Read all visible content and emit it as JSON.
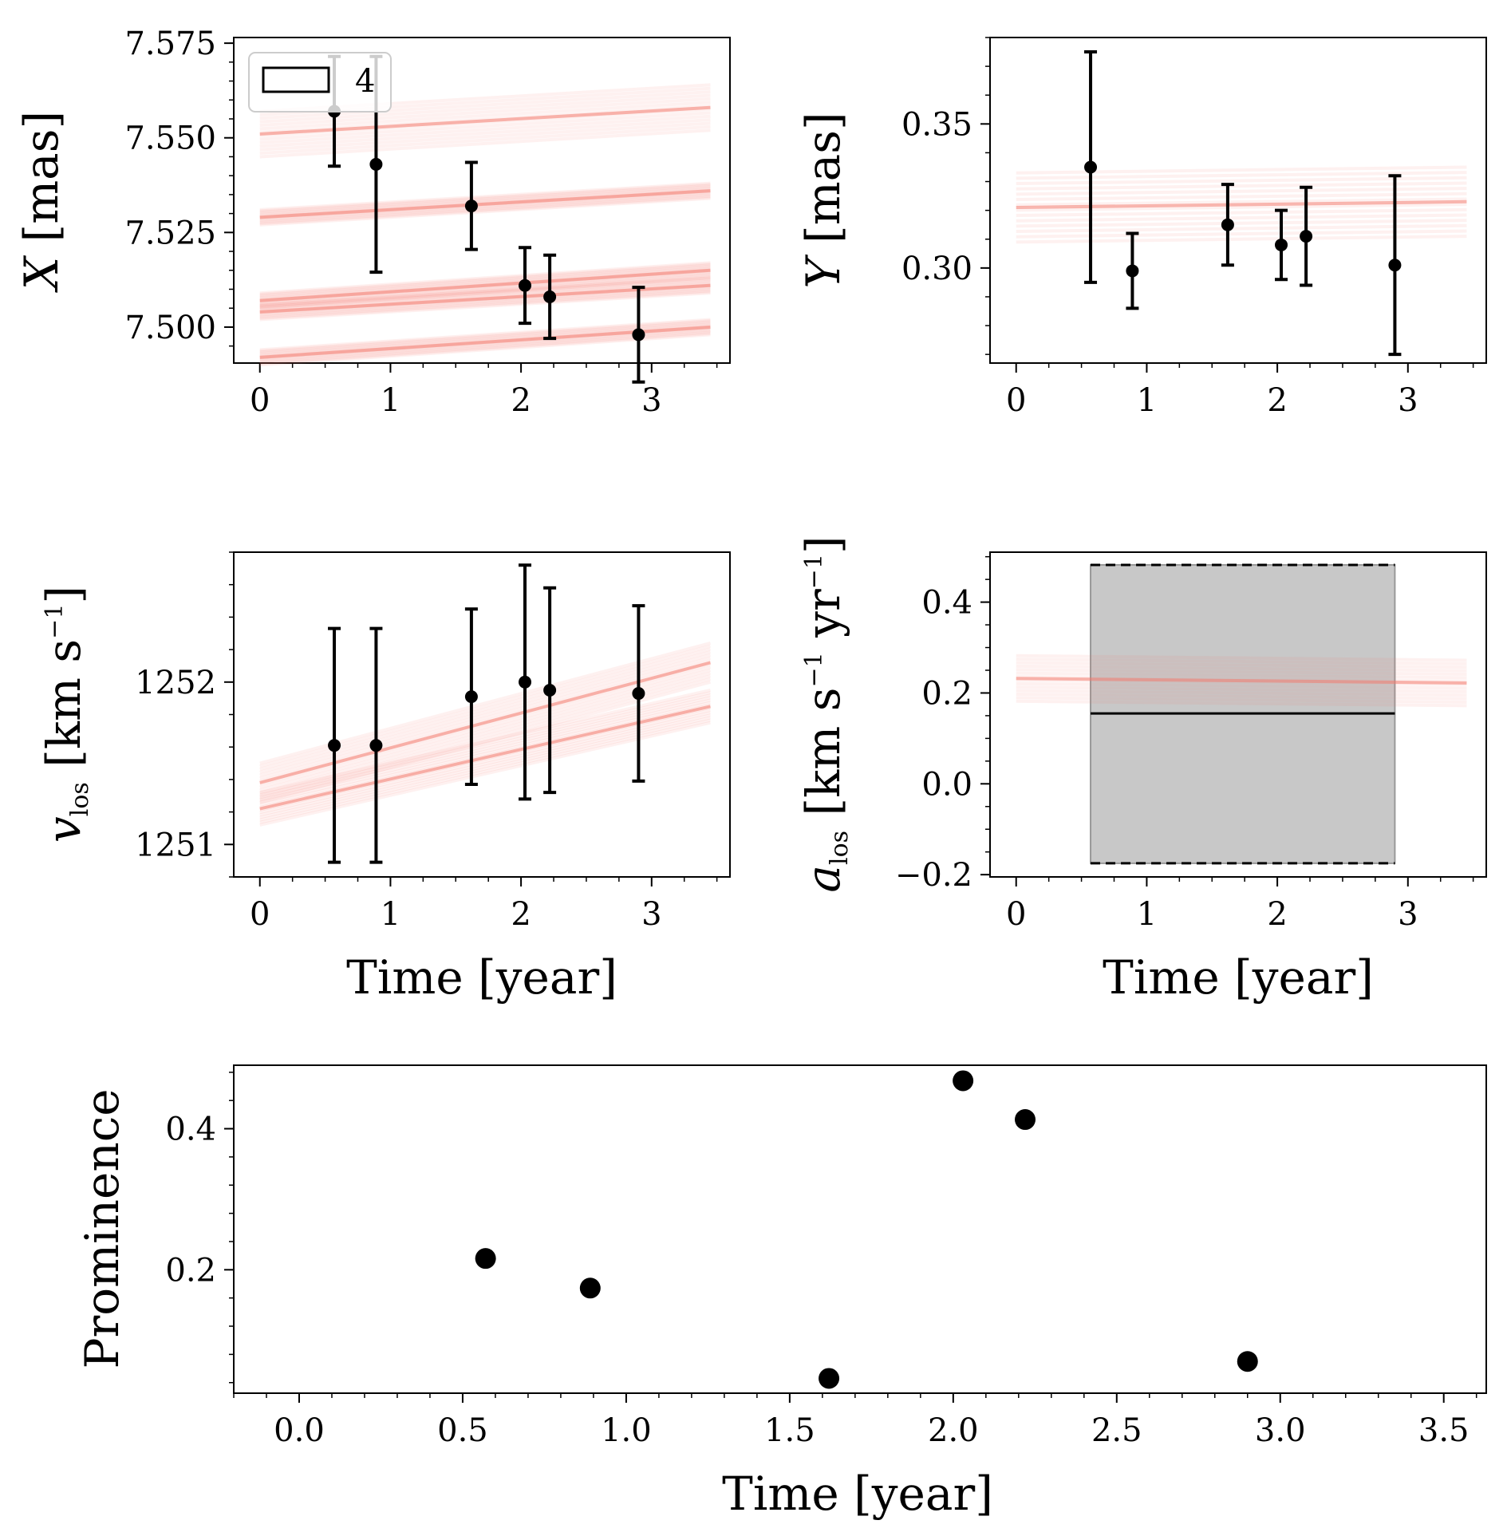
{
  "chart_data": [
    {
      "id": "x",
      "type": "line",
      "ylabel": "X [mas]",
      "ylabel_parts": [
        "X",
        " [mas]"
      ],
      "xlim": [
        -0.2,
        3.6
      ],
      "ylim": [
        7.4905,
        7.5765
      ],
      "xticks": [
        0,
        1,
        2,
        3
      ],
      "xtick_labels": [
        "0",
        "1",
        "2",
        "3"
      ],
      "yticks": [
        7.5,
        7.525,
        7.55,
        7.575
      ],
      "ytick_labels": [
        "7.500",
        "7.525",
        "7.550",
        "7.575"
      ],
      "legend": {
        "label": "4",
        "location": "upper left"
      },
      "points": {
        "x": [
          0.57,
          0.89,
          1.62,
          2.03,
          2.22,
          2.9
        ],
        "y": [
          7.557,
          7.543,
          7.532,
          7.511,
          7.508,
          7.498
        ],
        "yerr": [
          0.0145,
          0.0285,
          0.0115,
          0.01,
          0.011,
          0.0125
        ]
      },
      "model_bands": [
        {
          "x": [
            0,
            3.45
          ],
          "y": [
            7.551,
            7.558
          ],
          "width": 0.006
        },
        {
          "x": [
            0,
            3.45
          ],
          "y": [
            7.529,
            7.536
          ],
          "width": 0.002
        },
        {
          "x": [
            0,
            3.45
          ],
          "y": [
            7.507,
            7.515
          ],
          "width": 0.002
        },
        {
          "x": [
            0,
            3.45
          ],
          "y": [
            7.504,
            7.511
          ],
          "width": 0.002
        },
        {
          "x": [
            0,
            3.45
          ],
          "y": [
            7.492,
            7.5
          ],
          "width": 0.002
        }
      ]
    },
    {
      "id": "y",
      "type": "line",
      "ylabel": "Y [mas]",
      "ylabel_parts": [
        "Y",
        " [mas]"
      ],
      "xlim": [
        -0.2,
        3.6
      ],
      "ylim": [
        0.267,
        0.38
      ],
      "xticks": [
        0,
        1,
        2,
        3
      ],
      "xtick_labels": [
        "0",
        "1",
        "2",
        "3"
      ],
      "yticks": [
        0.3,
        0.35
      ],
      "ytick_labels": [
        "0.30",
        "0.35"
      ],
      "points": {
        "x": [
          0.57,
          0.89,
          1.62,
          2.03,
          2.22,
          2.9
        ],
        "y": [
          0.335,
          0.299,
          0.315,
          0.308,
          0.311,
          0.301
        ],
        "yerr": [
          0.04,
          0.013,
          0.014,
          0.012,
          0.017,
          0.031
        ]
      },
      "model_bands": [
        {
          "x": [
            0,
            3.45
          ],
          "y": [
            0.321,
            0.323
          ],
          "width": 0.012
        }
      ]
    },
    {
      "id": "vlos",
      "type": "line",
      "ylabel": "v_los [km s^-1]",
      "xlim": [
        -0.2,
        3.6
      ],
      "ylim": [
        1250.8,
        1252.8
      ],
      "xticks": [
        0,
        1,
        2,
        3
      ],
      "xtick_labels": [
        "0",
        "1",
        "2",
        "3"
      ],
      "yticks": [
        1251,
        1252
      ],
      "ytick_labels": [
        "1251",
        "1252"
      ],
      "xlabel": "Time [year]",
      "points": {
        "x": [
          0.57,
          0.89,
          1.62,
          2.03,
          2.22,
          2.9
        ],
        "y": [
          1251.61,
          1251.61,
          1251.91,
          1252.0,
          1251.95,
          1251.93
        ],
        "yerr": [
          0.72,
          0.72,
          0.54,
          0.72,
          0.63,
          0.54
        ]
      },
      "model_bands": [
        {
          "x": [
            0,
            3.45
          ],
          "y": [
            1251.38,
            1252.12
          ],
          "width": 0.12
        },
        {
          "x": [
            0,
            3.45
          ],
          "y": [
            1251.22,
            1251.85
          ],
          "width": 0.1
        }
      ]
    },
    {
      "id": "alos",
      "type": "line",
      "ylabel": "a_los [km s^-1 yr^-1]",
      "xlim": [
        -0.2,
        3.6
      ],
      "ylim": [
        -0.205,
        0.51
      ],
      "xticks": [
        0,
        1,
        2,
        3
      ],
      "xtick_labels": [
        "0",
        "1",
        "2",
        "3"
      ],
      "yticks": [
        -0.2,
        0.0,
        0.2,
        0.4
      ],
      "ytick_labels": [
        "−0.2",
        "0.0",
        "0.2",
        "0.4"
      ],
      "xlabel": "Time [year]",
      "box": {
        "x0": 0.57,
        "x1": 2.9,
        "center": 0.155,
        "lower": -0.175,
        "upper": 0.482
      },
      "model_bands": [
        {
          "x": [
            0,
            3.45
          ],
          "y": [
            0.232,
            0.222
          ],
          "width": 0.05
        }
      ]
    },
    {
      "id": "prominence",
      "type": "scatter",
      "ylabel": "Prominence",
      "xlabel": "Time [year]",
      "xlim": [
        -0.2,
        3.63
      ],
      "ylim": [
        0.025,
        0.49
      ],
      "xticks": [
        0.0,
        0.5,
        1.0,
        1.5,
        2.0,
        2.5,
        3.0,
        3.5
      ],
      "xtick_labels": [
        "0.0",
        "0.5",
        "1.0",
        "1.5",
        "2.0",
        "2.5",
        "3.0",
        "3.5"
      ],
      "yticks": [
        0.2,
        0.4
      ],
      "ytick_labels": [
        "0.2",
        "0.4"
      ],
      "x": [
        0.57,
        0.89,
        1.62,
        2.03,
        2.22,
        2.9
      ],
      "y": [
        0.216,
        0.174,
        0.046,
        0.468,
        0.413,
        0.07
      ]
    }
  ],
  "colors": {
    "model": "#f37a6d",
    "points": "#000000",
    "box_fill": "#c8c8c8"
  }
}
